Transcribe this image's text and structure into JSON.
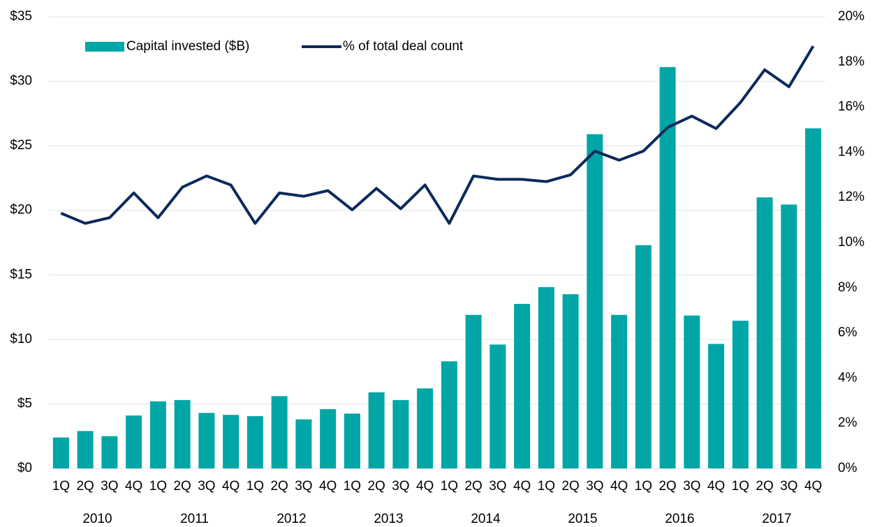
{
  "chart_data": {
    "type": "bar_line",
    "categories": [
      "1Q",
      "2Q",
      "3Q",
      "4Q",
      "1Q",
      "2Q",
      "3Q",
      "4Q",
      "1Q",
      "2Q",
      "3Q",
      "4Q",
      "1Q",
      "2Q",
      "3Q",
      "4Q",
      "1Q",
      "2Q",
      "3Q",
      "4Q",
      "1Q",
      "2Q",
      "3Q",
      "4Q",
      "1Q",
      "2Q",
      "3Q",
      "4Q",
      "1Q",
      "2Q",
      "3Q",
      "4Q"
    ],
    "groups": [
      "2010",
      "2011",
      "2012",
      "2013",
      "2014",
      "2015",
      "2016",
      "2017"
    ],
    "series": [
      {
        "name": "Capital invested ($B)",
        "color": "#00a6a6",
        "type": "bar",
        "values": [
          2.4,
          2.9,
          2.5,
          4.1,
          5.2,
          5.3,
          4.3,
          4.15,
          4.05,
          5.6,
          3.8,
          4.6,
          4.25,
          5.9,
          5.3,
          6.2,
          8.3,
          11.9,
          9.6,
          12.75,
          14.05,
          13.5,
          25.9,
          11.9,
          17.3,
          31.1,
          11.85,
          9.65,
          11.45,
          21.0,
          20.45,
          26.35
        ]
      },
      {
        "name": "% of total deal count",
        "color": "#0b2a5b",
        "type": "line",
        "axis": "y2",
        "values": [
          11.3,
          10.85,
          11.1,
          12.2,
          11.1,
          12.45,
          12.95,
          12.55,
          10.85,
          12.2,
          12.05,
          12.3,
          11.45,
          12.4,
          11.5,
          12.55,
          10.85,
          12.95,
          12.8,
          12.8,
          12.7,
          13.0,
          14.05,
          13.65,
          14.05,
          15.1,
          15.6,
          15.05,
          16.2,
          17.65,
          16.9,
          18.7
        ]
      }
    ],
    "ylim": [
      0,
      35
    ],
    "yticks": [
      {
        "value": 0,
        "label": "$0"
      },
      {
        "value": 5,
        "label": "$5"
      },
      {
        "value": 10,
        "label": "$10"
      },
      {
        "value": 15,
        "label": "$15"
      },
      {
        "value": 20,
        "label": "$20"
      },
      {
        "value": 25,
        "label": "$25"
      },
      {
        "value": 30,
        "label": "$30"
      },
      {
        "value": 35,
        "label": "$35"
      }
    ],
    "y2lim": [
      0,
      20
    ],
    "y2ticks": [
      {
        "value": 0,
        "label": "0%"
      },
      {
        "value": 2,
        "label": "2%"
      },
      {
        "value": 4,
        "label": "4%"
      },
      {
        "value": 6,
        "label": "6%"
      },
      {
        "value": 8,
        "label": "8%"
      },
      {
        "value": 10,
        "label": "10%"
      },
      {
        "value": 12,
        "label": "12%"
      },
      {
        "value": 14,
        "label": "14%"
      },
      {
        "value": 16,
        "label": "16%"
      },
      {
        "value": 18,
        "label": "18%"
      },
      {
        "value": 20,
        "label": "20%"
      }
    ],
    "grid": true,
    "legend": "top-left"
  }
}
